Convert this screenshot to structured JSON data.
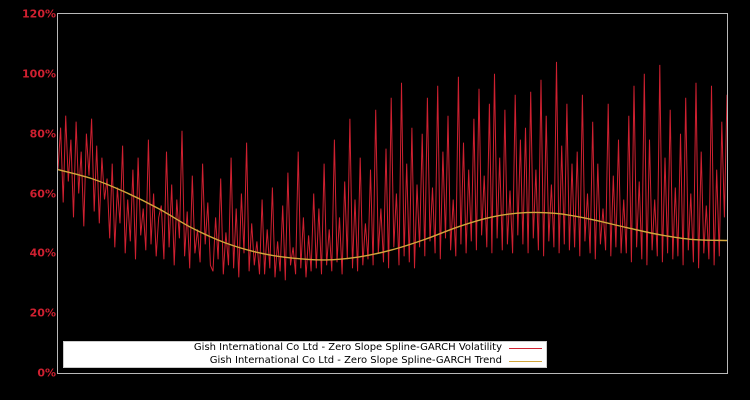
{
  "colors": {
    "background": "#000000",
    "plot_border": "#b9b9b9",
    "tick_label": "#cf2030",
    "legend_background": "#ffffff",
    "legend_border": "#cccccc",
    "legend_text": "#000000"
  },
  "chart_data": {
    "type": "line",
    "title": "",
    "xlabel": "",
    "ylabel": "",
    "ylim": [
      0,
      120
    ],
    "grid": false,
    "legend_position": "lower-left",
    "y_axis": {
      "min": 0,
      "max": 120,
      "ticks": [
        {
          "value": 120,
          "label": "120%"
        },
        {
          "value": 100,
          "label": "100%"
        },
        {
          "value": 80,
          "label": "80%"
        },
        {
          "value": 60,
          "label": "60%"
        },
        {
          "value": 40,
          "label": "40%"
        },
        {
          "value": 20,
          "label": "20%"
        },
        {
          "value": 0,
          "label": "0%"
        }
      ]
    },
    "x_axis": {
      "ticks": []
    },
    "series": [
      {
        "name": "Gish International Co Ltd - Zero Slope Spline-GARCH Volatility",
        "color": "#cf2030",
        "unit": "percent",
        "values": [
          68,
          82,
          57,
          86,
          64,
          78,
          52,
          84,
          60,
          74,
          49,
          80,
          66,
          85,
          54,
          76,
          50,
          72,
          58,
          65,
          45,
          70,
          42,
          62,
          50,
          76,
          40,
          58,
          44,
          68,
          38,
          72,
          46,
          55,
          41,
          78,
          43,
          60,
          39,
          52,
          56,
          38,
          74,
          42,
          63,
          36,
          58,
          45,
          81,
          39,
          54,
          35,
          66,
          40,
          48,
          37,
          70,
          43,
          57,
          36,
          34,
          52,
          38,
          65,
          33,
          47,
          36,
          72,
          35,
          55,
          32,
          60,
          40,
          77,
          34,
          50,
          36,
          44,
          33,
          58,
          33,
          48,
          35,
          62,
          32,
          44,
          34,
          56,
          31,
          67,
          36,
          42,
          33,
          74,
          35,
          52,
          32,
          46,
          34,
          60,
          35,
          55,
          33,
          70,
          36,
          48,
          34,
          78,
          37,
          52,
          33,
          64,
          38,
          85,
          35,
          58,
          34,
          72,
          36,
          50,
          38,
          68,
          36,
          88,
          40,
          55,
          37,
          75,
          35,
          92,
          42,
          60,
          36,
          97,
          39,
          70,
          37,
          82,
          35,
          63,
          42,
          80,
          39,
          92,
          44,
          62,
          40,
          96,
          38,
          74,
          45,
          86,
          41,
          58,
          39,
          99,
          43,
          77,
          40,
          68,
          44,
          85,
          41,
          95,
          46,
          66,
          42,
          90,
          40,
          100,
          45,
          72,
          41,
          88,
          43,
          61,
          40,
          93,
          46,
          78,
          43,
          82,
          40,
          94,
          45,
          68,
          41,
          98,
          39,
          86,
          44,
          63,
          42,
          104,
          40,
          76,
          43,
          90,
          41,
          70,
          42,
          74,
          39,
          93,
          44,
          60,
          40,
          84,
          38,
          70,
          43,
          55,
          41,
          90,
          39,
          66,
          42,
          78,
          40,
          58,
          40,
          86,
          37,
          96,
          42,
          64,
          38,
          100,
          36,
          78,
          41,
          58,
          39,
          103,
          37,
          72,
          40,
          88,
          38,
          62,
          39,
          80,
          36,
          92,
          41,
          60,
          37,
          97,
          35,
          74,
          40,
          56,
          38,
          96,
          36,
          68,
          39,
          84,
          52,
          93
        ]
      },
      {
        "name": "Gish International Co Ltd - Zero Slope Spline-GARCH Trend",
        "color": "#d2a63a",
        "unit": "percent",
        "x_fraction": [
          0,
          0.05,
          0.1,
          0.15,
          0.2,
          0.25,
          0.3,
          0.35,
          0.4,
          0.45,
          0.5,
          0.55,
          0.6,
          0.65,
          0.7,
          0.75,
          0.8,
          0.85,
          0.9,
          0.95,
          1
        ],
        "values": [
          68,
          65,
          60.5,
          55,
          48.5,
          43.5,
          40.2,
          38.4,
          37.8,
          38.8,
          41.2,
          44.8,
          49,
          52.2,
          53.6,
          53.2,
          51.2,
          48.6,
          46.2,
          44.6,
          44.3
        ]
      }
    ]
  }
}
